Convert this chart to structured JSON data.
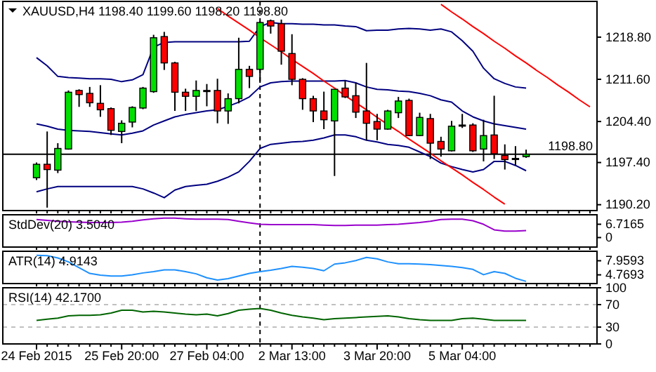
{
  "chart_data": [
    {
      "type": "candlestick",
      "title": "XAUUSD,H4  1198.40 1199.60 1198.20 1198.80",
      "categories": [
        null,
        null,
        null,
        null,
        null,
        null,
        null,
        null,
        null,
        null,
        null,
        null,
        null,
        null,
        null,
        null,
        null,
        null,
        null,
        null,
        null,
        null,
        null,
        null,
        null,
        null,
        null,
        null,
        null,
        null,
        null,
        null,
        null,
        null,
        null,
        null,
        null,
        null,
        null,
        null,
        null,
        null,
        null,
        null,
        null,
        null,
        null,
        null,
        null,
        null,
        null,
        null,
        null
      ],
      "ohlc": [
        [
          1194.8,
          1197.4,
          1194.4,
          1197.1
        ],
        [
          1197.1,
          1202.7,
          1189.7,
          1196.2
        ],
        [
          1196.1,
          1200.7,
          1195.6,
          1199.8
        ],
        [
          1199.7,
          1209.7,
          1199.6,
          1209.4
        ],
        [
          1209.7,
          1209.9,
          1206.9,
          1209.0
        ],
        [
          1209.2,
          1210.3,
          1206.9,
          1207.6
        ],
        [
          1207.5,
          1210.6,
          1205.2,
          1206.4
        ],
        [
          1206.6,
          1206.8,
          1202.1,
          1202.9
        ],
        [
          1202.7,
          1204.6,
          1200.7,
          1204.1
        ],
        [
          1204.3,
          1207.0,
          1203.4,
          1206.8
        ],
        [
          1206.7,
          1210.3,
          1206.5,
          1210.1
        ],
        [
          1209.5,
          1219.2,
          1209.3,
          1218.7
        ],
        [
          1218.9,
          1219.7,
          1213.2,
          1214.4
        ],
        [
          1214.4,
          1214.6,
          1206.2,
          1209.4
        ],
        [
          1209.4,
          1210.0,
          1206.2,
          1208.7
        ],
        [
          1208.7,
          1211.4,
          1206.2,
          1209.7
        ],
        [
          1209.7,
          1210.8,
          1207.0,
          1209.7
        ],
        [
          1209.7,
          1211.7,
          1204.1,
          1206.2
        ],
        [
          1206.2,
          1209.2,
          1204.0,
          1208.3
        ],
        [
          1208.3,
          1218.7,
          1207.5,
          1213.3
        ],
        [
          1213.3,
          1213.9,
          1210.1,
          1212.1
        ],
        [
          1213.3,
          1221.5,
          1211.0,
          1221.3
        ],
        [
          1221.6,
          1221.8,
          1219.4,
          1220.7
        ],
        [
          1221.1,
          1221.8,
          1214.1,
          1216.4
        ],
        [
          1216.0,
          1219.3,
          1210.6,
          1211.6
        ],
        [
          1211.6,
          1211.8,
          1206.4,
          1208.3
        ],
        [
          1208.3,
          1208.8,
          1204.3,
          1206.2
        ],
        [
          1206.2,
          1209.5,
          1203.1,
          1204.7
        ],
        [
          1204.5,
          1209.9,
          1195.1,
          1209.9
        ],
        [
          1210.1,
          1211.4,
          1208.4,
          1208.6
        ],
        [
          1208.8,
          1211.0,
          1205.0,
          1206.0
        ],
        [
          1206.2,
          1214.4,
          1201.2,
          1204.1
        ],
        [
          1204.4,
          1205.7,
          1201.2,
          1203.1
        ],
        [
          1203.1,
          1206.4,
          1203.0,
          1206.2
        ],
        [
          1205.9,
          1208.6,
          1205.0,
          1207.9
        ],
        [
          1208.0,
          1208.3,
          1201.9,
          1202.0
        ],
        [
          1202.0,
          1205.9,
          1201.9,
          1205.1
        ],
        [
          1204.9,
          1205.7,
          1198.0,
          1200.7
        ],
        [
          1201.0,
          1201.8,
          1198.4,
          1199.7
        ],
        [
          1199.4,
          1204.5,
          1199.3,
          1203.6
        ],
        [
          1203.8,
          1205.7,
          1203.3,
          1203.8
        ],
        [
          1203.8,
          1204.1,
          1199.2,
          1199.4
        ],
        [
          1199.7,
          1204.7,
          1197.6,
          1202.0
        ],
        [
          1202.1,
          1208.8,
          1198.0,
          1198.9
        ],
        [
          1198.6,
          1200.5,
          1196.2,
          1197.9
        ],
        [
          1198.1,
          1200.2,
          1196.9,
          1198.1
        ],
        [
          1198.4,
          1199.6,
          1198.2,
          1198.8
        ],
        null,
        null,
        null,
        null,
        null,
        null
      ],
      "colors": [
        "#00e000",
        "#ff0000",
        "#00e000",
        "#00e000",
        "#ff0000",
        "#ff0000",
        "#ff0000",
        "#ff0000",
        "#00e000",
        "#00e000",
        "#00e000",
        "#00e000",
        "#ff0000",
        "#ff0000",
        "#ff0000",
        "#00e000",
        "#000000",
        "#ff0000",
        "#00e000",
        "#00e000",
        "#ff0000",
        "#00e000",
        "#ff0000",
        "#ff0000",
        "#ff0000",
        "#ff0000",
        "#ff0000",
        "#ff0000",
        "#00e000",
        "#ff0000",
        "#ff0000",
        "#ff0000",
        "#ff0000",
        "#00e000",
        "#00e000",
        "#ff0000",
        "#00e000",
        "#ff0000",
        "#ff0000",
        "#00e000",
        "#000000",
        "#ff0000",
        "#00e000",
        "#ff0000",
        "#ff0000",
        "#000000",
        "#00e000",
        null,
        null,
        null,
        null,
        null,
        null
      ],
      "series": [
        {
          "type": "line",
          "color": "#000080",
          "values": [
            1215.3,
            1213.9,
            1212.1,
            1211.9,
            1211.8,
            1211.7,
            1211.7,
            1211.6,
            1211.2,
            1211.5,
            1212.4,
            1217.1,
            1217.9,
            1218.0,
            1218.0,
            1218.0,
            1218.0,
            1218.0,
            1218.0,
            1218.0,
            1218.1,
            1220.6,
            1221.3,
            1221.1,
            1221.1,
            1221.0,
            1221.0,
            1220.9,
            1220.9,
            1220.7,
            1220.6,
            1219.9,
            1220.0,
            1220.0,
            1220.2,
            1220.3,
            1220.2,
            1220.0,
            1220.2,
            1219.7,
            1218.2,
            1216.4,
            1213.5,
            1211.7,
            1210.9,
            1210.3,
            1210.1,
            null,
            null,
            null,
            null,
            null,
            null
          ]
        },
        {
          "type": "line",
          "color": "#000080",
          "values": [
            1204.0,
            1203.6,
            1203.1,
            1202.9,
            1202.8,
            1202.7,
            1202.5,
            1202.3,
            1202.1,
            1202.4,
            1202.8,
            1203.8,
            1204.5,
            1205.2,
            1205.6,
            1205.9,
            1206.2,
            1206.4,
            1207.0,
            1207.7,
            1208.6,
            1210.3,
            1211.0,
            1211.2,
            1211.3,
            1211.3,
            1211.3,
            1211.3,
            1211.3,
            1211.4,
            1211.0,
            1210.3,
            1209.9,
            1209.8,
            1209.6,
            1209.5,
            1209.2,
            1208.8,
            1208.1,
            1207.7,
            1206.2,
            1205.2,
            1204.5,
            1204.0,
            1203.7,
            1203.4,
            1203.1,
            null,
            null,
            null,
            null,
            null,
            null
          ]
        },
        {
          "type": "line",
          "color": "#000080",
          "values": [
            1192.4,
            1192.9,
            1193.3,
            1193.3,
            1193.3,
            1193.3,
            1193.3,
            1193.3,
            1193.3,
            1193.3,
            1192.9,
            1192.2,
            1191.4,
            1192.7,
            1193.3,
            1193.5,
            1193.7,
            1194.2,
            1194.9,
            1195.8,
            1197.6,
            1199.8,
            1200.5,
            1200.7,
            1200.9,
            1201.0,
            1201.2,
            1201.6,
            1202.1,
            1202.1,
            1201.8,
            1201.2,
            1200.9,
            1200.5,
            1200.3,
            1200.0,
            1199.2,
            1198.4,
            1197.3,
            1196.7,
            1196.2,
            1195.8,
            1196.2,
            1197.6,
            1197.6,
            1196.9,
            1196.0,
            null,
            null,
            null,
            null,
            null,
            null
          ]
        },
        {
          "type": "line",
          "color": "#ff0000",
          "values": [
            null,
            null,
            null,
            null,
            null,
            null,
            null,
            null,
            null,
            null,
            null,
            null,
            null,
            null,
            null,
            null,
            null,
            1223.7,
            1222.4,
            1221.2,
            1220.0,
            1218.7,
            1217.5,
            1216.3,
            1215.0,
            1213.8,
            1212.6,
            1211.3,
            1210.1,
            1208.8,
            1207.6,
            1206.4,
            1205.1,
            1203.9,
            1202.7,
            1201.4,
            1200.2,
            1199.0,
            1197.7,
            1196.5,
            1195.3,
            1194.0,
            1192.8,
            1191.5,
            1190.3,
            null,
            null,
            null,
            null,
            null,
            null,
            null,
            null
          ]
        },
        {
          "type": "line",
          "color": "#ff0000",
          "values": [
            null,
            null,
            null,
            null,
            null,
            null,
            null,
            null,
            null,
            null,
            null,
            null,
            null,
            null,
            null,
            null,
            null,
            null,
            null,
            null,
            null,
            null,
            null,
            null,
            null,
            null,
            null,
            null,
            null,
            null,
            null,
            null,
            null,
            null,
            null,
            null,
            null,
            null,
            1224.4,
            1223.1,
            1221.9,
            1220.6,
            1219.4,
            1218.1,
            1216.9,
            1215.6,
            1214.4,
            1213.1,
            1211.9,
            1210.6,
            1209.4,
            1208.1,
            1206.9
          ]
        }
      ],
      "ylim": [
        1189.2,
        1224.9
      ],
      "yticks": [
        {
          "value": 1190.2,
          "label": "1190.20"
        },
        {
          "value": 1197.4,
          "label": "1197.40"
        },
        {
          "value": 1204.4,
          "label": "1204.40"
        },
        {
          "value": 1211.6,
          "label": "1211.60"
        },
        {
          "value": 1218.8,
          "label": "1218.80"
        }
      ],
      "ref_lines": [
        {
          "axis": "y",
          "value": 1198.8,
          "label": "1198.80",
          "color": "#000000"
        }
      ],
      "tick_labels": "y"
    },
    {
      "type": "line",
      "title": "StdDev(20) 3.5040",
      "categories": [
        null,
        null,
        null,
        null,
        null,
        null,
        null,
        null,
        null,
        null,
        null,
        null,
        null,
        null,
        null,
        null,
        null,
        null,
        null,
        null,
        null,
        null,
        null,
        null,
        null,
        null,
        null,
        null,
        null,
        null,
        null,
        null,
        null,
        null,
        null,
        null,
        null,
        null,
        null,
        null,
        null,
        null,
        null,
        null,
        null,
        null,
        null,
        null,
        null,
        null,
        null,
        null,
        null
      ],
      "series": [
        {
          "color": "#9900cc",
          "values": [
            9.1,
            8.7,
            8.2,
            8.0,
            7.8,
            7.6,
            7.6,
            7.6,
            7.8,
            8.2,
            8.9,
            9.5,
            9.8,
            9.8,
            9.5,
            9.3,
            9.3,
            9.3,
            9.1,
            8.2,
            7.4,
            6.7,
            6.5,
            6.5,
            6.5,
            6.5,
            6.5,
            6.3,
            6.1,
            6.1,
            6.3,
            6.3,
            6.3,
            6.5,
            6.7,
            7.2,
            7.6,
            8.2,
            9.1,
            9.3,
            9.3,
            8.5,
            6.7,
            3.9,
            3.3,
            3.3,
            3.5,
            null,
            null,
            null,
            null,
            null,
            null
          ]
        }
      ],
      "ylim": [
        -4.8,
        11.5
      ],
      "yticks": [
        0,
        6.7165
      ],
      "tick_labels": "y"
    },
    {
      "type": "line",
      "title": "ATR(14) 4.9143",
      "categories": [
        null,
        null,
        null,
        null,
        null,
        null,
        null,
        null,
        null,
        null,
        null,
        null,
        null,
        null,
        null,
        null,
        null,
        null,
        null,
        null,
        null,
        null,
        null,
        null,
        null,
        null,
        null,
        null,
        null,
        null,
        null,
        null,
        null,
        null,
        null,
        null,
        null,
        null,
        null,
        null,
        null,
        null,
        null,
        null,
        null,
        null,
        null,
        null,
        null,
        null,
        null,
        null,
        null
      ],
      "series": [
        {
          "color": "#1e90ff",
          "values": [
            9.2,
            9.1,
            8.6,
            7.7,
            6.4,
            5.1,
            4.7,
            4.5,
            4.5,
            4.8,
            5.2,
            5.5,
            5.9,
            5.9,
            5.5,
            5.0,
            4.1,
            3.6,
            3.9,
            4.5,
            5.1,
            5.5,
            5.8,
            6.2,
            6.7,
            6.5,
            6.2,
            5.7,
            7.2,
            7.5,
            8.0,
            8.7,
            8.4,
            7.7,
            7.3,
            7.3,
            7.2,
            7.1,
            6.9,
            6.7,
            6.4,
            6.0,
            4.8,
            5.5,
            5.1,
            4.0,
            3.3,
            null,
            null,
            null,
            null,
            null,
            null
          ]
        }
      ],
      "ylim": [
        2.8,
        10.1
      ],
      "yticks": [
        4.7693,
        7.9593
      ],
      "tick_labels": "y"
    },
    {
      "type": "line",
      "title": "RSI(14) 42.1700",
      "categories": [
        "24 Feb 2015",
        null,
        null,
        null,
        null,
        null,
        null,
        null,
        "25 Feb 20:00",
        null,
        null,
        null,
        null,
        null,
        null,
        null,
        "27 Feb 04:00",
        null,
        null,
        null,
        null,
        null,
        null,
        null,
        "2 Mar 13:00",
        null,
        null,
        null,
        null,
        null,
        null,
        null,
        "3 Mar 20:00",
        null,
        null,
        null,
        null,
        null,
        null,
        null,
        "5 Mar 04:00",
        null,
        null,
        null,
        null,
        null,
        null,
        null,
        null,
        null,
        null,
        null,
        null
      ],
      "series": [
        {
          "color": "#006400",
          "values": [
            42,
            44,
            46,
            50,
            51,
            51,
            52,
            55,
            60,
            60,
            57,
            58,
            57,
            55,
            53,
            52,
            53,
            50,
            54,
            60,
            62,
            63,
            60,
            55,
            51,
            48,
            46,
            43,
            45,
            46,
            47,
            48,
            49,
            50,
            48,
            45,
            43,
            42,
            42,
            42,
            45,
            46,
            44,
            42,
            42,
            42,
            42,
            null,
            null,
            null,
            null,
            null,
            null
          ]
        }
      ],
      "ylim": [
        0,
        100
      ],
      "yticks": [
        0,
        30,
        70,
        100
      ],
      "ref_lines": [
        {
          "axis": "y",
          "value": 70,
          "color": "#c0c0c0",
          "line_style": "dashed"
        },
        {
          "axis": "y",
          "value": 30,
          "color": "#c0c0c0",
          "line_style": "dashed"
        }
      ]
    }
  ]
}
